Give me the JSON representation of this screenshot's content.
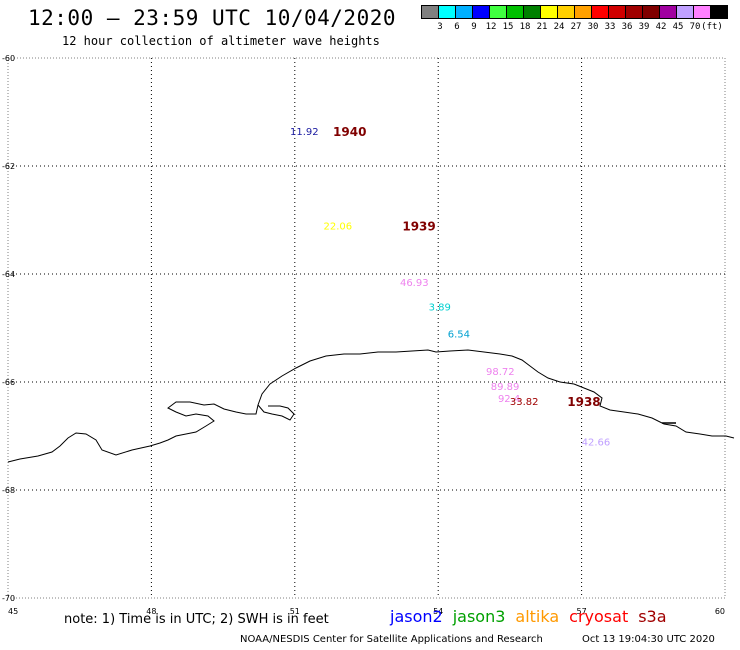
{
  "header": {
    "title": "12:00 – 23:59 UTC 10/04/2020",
    "subtitle": "12 hour collection of altimeter wave heights"
  },
  "scale": {
    "colors": [
      "#808080",
      "#00ffff",
      "#00b0ff",
      "#0000ff",
      "#40ff40",
      "#00c000",
      "#008000",
      "#ffff00",
      "#ffd000",
      "#ffa000",
      "#ff0000",
      "#d00000",
      "#a00000",
      "#800000",
      "#a000a0",
      "#c0a0ff",
      "#ff80ff",
      "#000000"
    ],
    "labels": [
      "3",
      "6",
      "9",
      "12",
      "15",
      "18",
      "21",
      "24",
      "27",
      "30",
      "33",
      "36",
      "39",
      "42",
      "45",
      "70",
      "(ft)"
    ]
  },
  "axes": {
    "x_ticks": [
      "45",
      "48",
      "51",
      "54",
      "57",
      "60"
    ],
    "y_ticks": [
      "-60",
      "-62",
      "-64",
      "-66",
      "-68",
      "-70"
    ]
  },
  "chart_data": {
    "type": "scatter",
    "xlim": [
      45,
      60
    ],
    "ylim": [
      -70,
      -60
    ],
    "grid": true,
    "wave_heights": [
      {
        "lon": 50.9,
        "lat": -61.35,
        "label": "11.92",
        "color": "#1a1aa0"
      },
      {
        "lon": 51.6,
        "lat": -63.1,
        "label": "22.06",
        "color": "#ffff00"
      },
      {
        "lon": 53.2,
        "lat": -64.15,
        "label": "46.93",
        "color": "#ee82ee"
      },
      {
        "lon": 53.8,
        "lat": -64.6,
        "label": "3.89",
        "color": "#00d0d0"
      },
      {
        "lon": 54.2,
        "lat": -65.1,
        "label": "6.54",
        "color": "#00a0d0"
      },
      {
        "lon": 55.0,
        "lat": -65.8,
        "label": "98.72",
        "color": "#ee82ee"
      },
      {
        "lon": 55.1,
        "lat": -66.07,
        "label": "89.89",
        "color": "#ee82ee"
      },
      {
        "lon": 55.25,
        "lat": -66.3,
        "label": "92.4",
        "color": "#ee82ee"
      },
      {
        "lon": 55.5,
        "lat": -66.35,
        "label": "33.82",
        "color": "#a00000"
      },
      {
        "lon": 57.0,
        "lat": -67.1,
        "label": "42.66",
        "color": "#c0a0ff"
      }
    ],
    "times": [
      {
        "lon": 51.8,
        "lat": -61.35,
        "label": "1940",
        "color": "#800000"
      },
      {
        "lon": 53.25,
        "lat": -63.1,
        "label": "1939",
        "color": "#800000"
      },
      {
        "lon": 56.7,
        "lat": -66.35,
        "label": "1938",
        "color": "#800000"
      }
    ]
  },
  "footer": {
    "note": "note: 1) Time is in UTC; 2) SWH is in feet",
    "satellites": [
      {
        "name": "jason2",
        "color": "#0000ff"
      },
      {
        "name": "jason3",
        "color": "#00a000"
      },
      {
        "name": "altika",
        "color": "#ff9900"
      },
      {
        "name": "cryosat",
        "color": "#ff0000"
      },
      {
        "name": "s3a",
        "color": "#a00000"
      }
    ],
    "credit": "NOAA/NESDIS Center for Satellite Applications and Research",
    "timestamp": "Oct 13 19:04:30 UTC 2020"
  }
}
